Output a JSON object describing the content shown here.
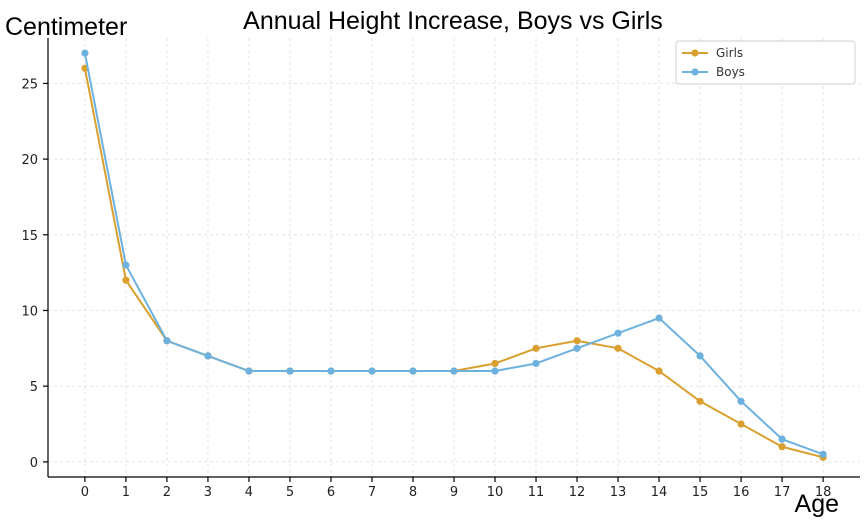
{
  "chart_data": {
    "type": "line",
    "title": "Annual Height Increase, Boys vs Girls",
    "xlabel": "Age",
    "ylabel": "Centimeter",
    "x": [
      0,
      1,
      2,
      3,
      4,
      5,
      6,
      7,
      8,
      9,
      10,
      11,
      12,
      13,
      14,
      15,
      16,
      17,
      18
    ],
    "xlim": [
      -0.9,
      18.9
    ],
    "ylim": [
      -1,
      28
    ],
    "yticks": [
      0,
      5,
      10,
      15,
      20,
      25
    ],
    "grid": true,
    "legend_position": "top-right",
    "series": [
      {
        "name": "Girls",
        "color": "#D9A030",
        "values": [
          26,
          12,
          8,
          7,
          6,
          6,
          6,
          6,
          6,
          6,
          6.5,
          7.5,
          8,
          7.5,
          6,
          4,
          2.5,
          1,
          0.3
        ]
      },
      {
        "name": "Boys",
        "color": "#6DB1DE",
        "values": [
          27,
          13,
          8,
          7,
          6,
          6,
          6,
          6,
          6,
          6,
          6,
          6.5,
          7.5,
          8.5,
          9.5,
          7,
          4,
          1.5,
          0.5
        ]
      }
    ]
  }
}
